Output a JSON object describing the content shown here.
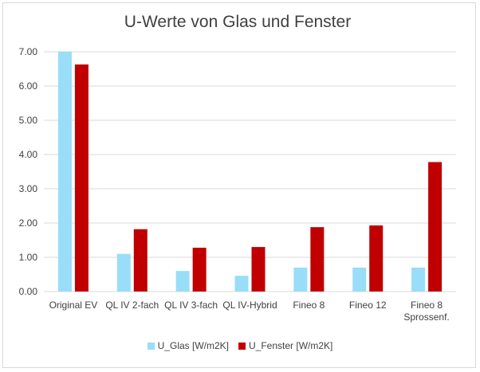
{
  "chart_data": {
    "type": "bar",
    "title": "U-Werte von Glas und Fenster",
    "xlabel": "",
    "ylabel": "",
    "ylim": [
      0,
      7
    ],
    "yticks": [
      "0.00",
      "1.00",
      "2.00",
      "3.00",
      "4.00",
      "5.00",
      "6.00",
      "7.00"
    ],
    "grid": true,
    "legend_position": "bottom",
    "categories": [
      [
        "Original EV"
      ],
      [
        "QL IV 2-fach"
      ],
      [
        "QL IV 3-fach"
      ],
      [
        "QL IV-Hybrid"
      ],
      [
        "Fineo 8"
      ],
      [
        "Fineo 12"
      ],
      [
        "Fineo 8",
        "Sprossenf."
      ]
    ],
    "series": [
      {
        "name": "U_Glas [W/m2K]",
        "color": "#99ddf8",
        "values": [
          7.0,
          1.1,
          0.6,
          0.46,
          0.7,
          0.7,
          0.7
        ]
      },
      {
        "name": "U_Fenster [W/m2K]",
        "color": "#c00000",
        "values": [
          6.63,
          1.82,
          1.28,
          1.3,
          1.88,
          1.93,
          3.78
        ]
      }
    ]
  }
}
